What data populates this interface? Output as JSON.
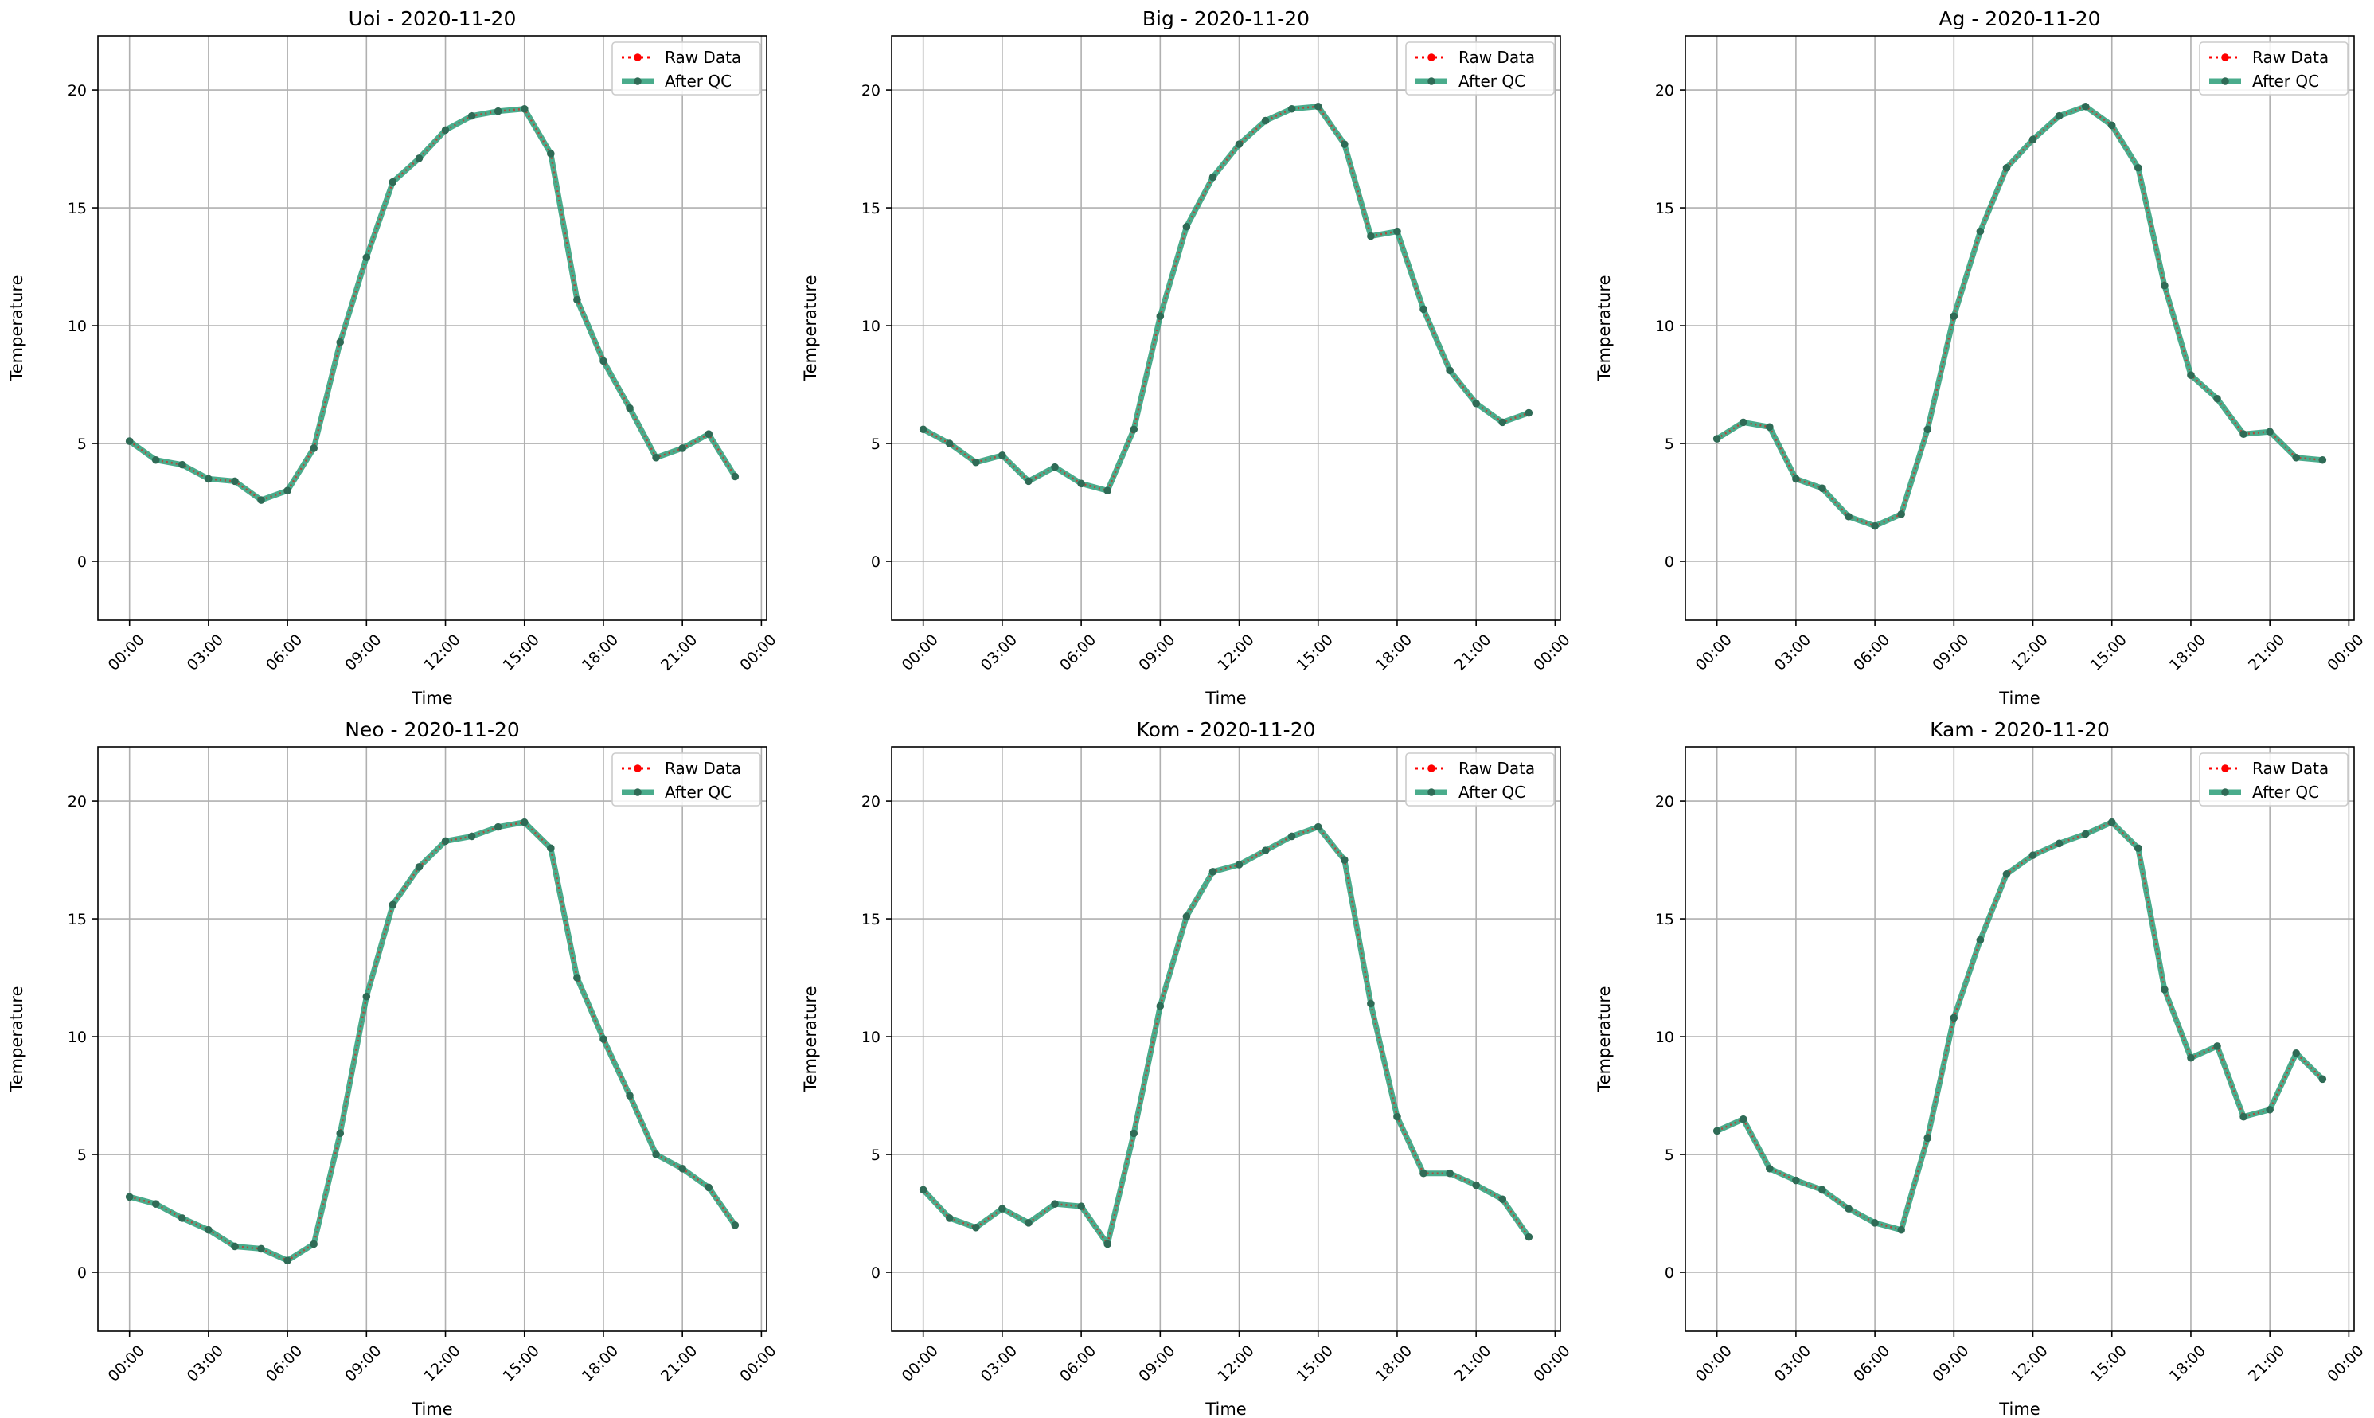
{
  "figure": {
    "background": "#ffffff"
  },
  "style": {
    "raw_color": "#ff0000",
    "qc_color": "#2a9d78",
    "marker_color": "#2f6b56",
    "grid_color": "#b0b0b0",
    "legend_border": "#cccccc"
  },
  "chart_data": [
    {
      "type": "line",
      "title": "Uoi - 2020-11-20",
      "xlabel": "Time",
      "ylabel": "Temperature",
      "x": [
        "00:00",
        "01:00",
        "02:00",
        "03:00",
        "04:00",
        "05:00",
        "06:00",
        "07:00",
        "08:00",
        "09:00",
        "10:00",
        "11:00",
        "12:00",
        "13:00",
        "14:00",
        "15:00",
        "16:00",
        "17:00",
        "18:00",
        "19:00",
        "20:00",
        "21:00",
        "22:00",
        "23:00"
      ],
      "xticks": [
        "00:00",
        "03:00",
        "06:00",
        "09:00",
        "12:00",
        "15:00",
        "18:00",
        "21:00",
        "00:00"
      ],
      "yticks": [
        0,
        5,
        10,
        15,
        20
      ],
      "ylim": [
        -2.5,
        22.3
      ],
      "grid": true,
      "legend_position": "top-right",
      "series": [
        {
          "name": "Raw Data",
          "values": [
            5.1,
            4.3,
            4.1,
            3.5,
            3.4,
            2.6,
            3.0,
            4.8,
            9.3,
            12.9,
            16.1,
            17.1,
            18.3,
            18.9,
            19.1,
            19.2,
            17.3,
            11.1,
            8.5,
            6.5,
            4.4,
            4.8,
            5.4,
            3.6
          ]
        },
        {
          "name": "After QC",
          "values": [
            5.1,
            4.3,
            4.1,
            3.5,
            3.4,
            2.6,
            3.0,
            4.8,
            9.3,
            12.9,
            16.1,
            17.1,
            18.3,
            18.9,
            19.1,
            19.2,
            17.3,
            11.1,
            8.5,
            6.5,
            4.4,
            4.8,
            5.4,
            3.6
          ]
        }
      ]
    },
    {
      "type": "line",
      "title": "Big - 2020-11-20",
      "xlabel": "Time",
      "ylabel": "Temperature",
      "x": [
        "00:00",
        "01:00",
        "02:00",
        "03:00",
        "04:00",
        "05:00",
        "06:00",
        "07:00",
        "08:00",
        "09:00",
        "10:00",
        "11:00",
        "12:00",
        "13:00",
        "14:00",
        "15:00",
        "16:00",
        "17:00",
        "18:00",
        "19:00",
        "20:00",
        "21:00",
        "22:00",
        "23:00"
      ],
      "xticks": [
        "00:00",
        "03:00",
        "06:00",
        "09:00",
        "12:00",
        "15:00",
        "18:00",
        "21:00",
        "00:00"
      ],
      "yticks": [
        0,
        5,
        10,
        15,
        20
      ],
      "ylim": [
        -2.5,
        22.3
      ],
      "grid": true,
      "legend_position": "top-right",
      "series": [
        {
          "name": "Raw Data",
          "values": [
            5.6,
            5.0,
            4.2,
            4.5,
            3.4,
            4.0,
            3.3,
            3.0,
            5.6,
            10.4,
            14.2,
            16.3,
            17.7,
            18.7,
            19.2,
            19.3,
            17.7,
            13.8,
            14.0,
            10.7,
            8.1,
            6.7,
            5.9,
            6.3
          ]
        },
        {
          "name": "After QC",
          "values": [
            5.6,
            5.0,
            4.2,
            4.5,
            3.4,
            4.0,
            3.3,
            3.0,
            5.6,
            10.4,
            14.2,
            16.3,
            17.7,
            18.7,
            19.2,
            19.3,
            17.7,
            13.8,
            14.0,
            10.7,
            8.1,
            6.7,
            5.9,
            6.3
          ]
        }
      ]
    },
    {
      "type": "line",
      "title": "Ag - 2020-11-20",
      "xlabel": "Time",
      "ylabel": "Temperature",
      "x": [
        "00:00",
        "01:00",
        "02:00",
        "03:00",
        "04:00",
        "05:00",
        "06:00",
        "07:00",
        "08:00",
        "09:00",
        "10:00",
        "11:00",
        "12:00",
        "13:00",
        "14:00",
        "15:00",
        "16:00",
        "17:00",
        "18:00",
        "19:00",
        "20:00",
        "21:00",
        "22:00",
        "23:00"
      ],
      "xticks": [
        "00:00",
        "03:00",
        "06:00",
        "09:00",
        "12:00",
        "15:00",
        "18:00",
        "21:00",
        "00:00"
      ],
      "yticks": [
        0,
        5,
        10,
        15,
        20
      ],
      "ylim": [
        -2.5,
        22.3
      ],
      "grid": true,
      "legend_position": "top-right",
      "series": [
        {
          "name": "Raw Data",
          "values": [
            5.2,
            5.9,
            5.7,
            3.5,
            3.1,
            1.9,
            1.5,
            2.0,
            5.6,
            10.4,
            14.0,
            16.7,
            17.9,
            18.9,
            19.3,
            18.5,
            16.7,
            11.7,
            7.9,
            6.9,
            5.4,
            5.5,
            4.4,
            4.3
          ]
        },
        {
          "name": "After QC",
          "values": [
            5.2,
            5.9,
            5.7,
            3.5,
            3.1,
            1.9,
            1.5,
            2.0,
            5.6,
            10.4,
            14.0,
            16.7,
            17.9,
            18.9,
            19.3,
            18.5,
            16.7,
            11.7,
            7.9,
            6.9,
            5.4,
            5.5,
            4.4,
            4.3
          ]
        }
      ]
    },
    {
      "type": "line",
      "title": "Neo - 2020-11-20",
      "xlabel": "Time",
      "ylabel": "Temperature",
      "x": [
        "00:00",
        "01:00",
        "02:00",
        "03:00",
        "04:00",
        "05:00",
        "06:00",
        "07:00",
        "08:00",
        "09:00",
        "10:00",
        "11:00",
        "12:00",
        "13:00",
        "14:00",
        "15:00",
        "16:00",
        "17:00",
        "18:00",
        "19:00",
        "20:00",
        "21:00",
        "22:00",
        "23:00"
      ],
      "xticks": [
        "00:00",
        "03:00",
        "06:00",
        "09:00",
        "12:00",
        "15:00",
        "18:00",
        "21:00",
        "00:00"
      ],
      "yticks": [
        0,
        5,
        10,
        15,
        20
      ],
      "ylim": [
        -2.5,
        22.3
      ],
      "grid": true,
      "legend_position": "top-right",
      "series": [
        {
          "name": "Raw Data",
          "values": [
            3.2,
            2.9,
            2.3,
            1.8,
            1.1,
            1.0,
            0.5,
            1.2,
            5.9,
            11.7,
            15.6,
            17.2,
            18.3,
            18.5,
            18.9,
            19.1,
            18.0,
            12.5,
            9.9,
            7.5,
            5.0,
            4.4,
            3.6,
            2.0
          ]
        },
        {
          "name": "After QC",
          "values": [
            3.2,
            2.9,
            2.3,
            1.8,
            1.1,
            1.0,
            0.5,
            1.2,
            5.9,
            11.7,
            15.6,
            17.2,
            18.3,
            18.5,
            18.9,
            19.1,
            18.0,
            12.5,
            9.9,
            7.5,
            5.0,
            4.4,
            3.6,
            2.0
          ]
        }
      ]
    },
    {
      "type": "line",
      "title": "Kom - 2020-11-20",
      "xlabel": "Time",
      "ylabel": "Temperature",
      "x": [
        "00:00",
        "01:00",
        "02:00",
        "03:00",
        "04:00",
        "05:00",
        "06:00",
        "07:00",
        "08:00",
        "09:00",
        "10:00",
        "11:00",
        "12:00",
        "13:00",
        "14:00",
        "15:00",
        "16:00",
        "17:00",
        "18:00",
        "19:00",
        "20:00",
        "21:00",
        "22:00",
        "23:00"
      ],
      "xticks": [
        "00:00",
        "03:00",
        "06:00",
        "09:00",
        "12:00",
        "15:00",
        "18:00",
        "21:00",
        "00:00"
      ],
      "yticks": [
        0,
        5,
        10,
        15,
        20
      ],
      "ylim": [
        -2.5,
        22.3
      ],
      "grid": true,
      "legend_position": "top-right",
      "series": [
        {
          "name": "Raw Data",
          "values": [
            3.5,
            2.3,
            1.9,
            2.7,
            2.1,
            2.9,
            2.8,
            1.2,
            5.9,
            11.3,
            15.1,
            17.0,
            17.3,
            17.9,
            18.5,
            18.9,
            17.5,
            11.4,
            6.6,
            4.2,
            4.2,
            3.7,
            3.1,
            1.5
          ]
        },
        {
          "name": "After QC",
          "values": [
            3.5,
            2.3,
            1.9,
            2.7,
            2.1,
            2.9,
            2.8,
            1.2,
            5.9,
            11.3,
            15.1,
            17.0,
            17.3,
            17.9,
            18.5,
            18.9,
            17.5,
            11.4,
            6.6,
            4.2,
            4.2,
            3.7,
            3.1,
            1.5
          ]
        }
      ]
    },
    {
      "type": "line",
      "title": "Kam - 2020-11-20",
      "xlabel": "Time",
      "ylabel": "Temperature",
      "x": [
        "00:00",
        "01:00",
        "02:00",
        "03:00",
        "04:00",
        "05:00",
        "06:00",
        "07:00",
        "08:00",
        "09:00",
        "10:00",
        "11:00",
        "12:00",
        "13:00",
        "14:00",
        "15:00",
        "16:00",
        "17:00",
        "18:00",
        "19:00",
        "20:00",
        "21:00",
        "22:00",
        "23:00"
      ],
      "xticks": [
        "00:00",
        "03:00",
        "06:00",
        "09:00",
        "12:00",
        "15:00",
        "18:00",
        "21:00",
        "00:00"
      ],
      "yticks": [
        0,
        5,
        10,
        15,
        20
      ],
      "ylim": [
        -2.5,
        22.3
      ],
      "grid": true,
      "legend_position": "top-right",
      "series": [
        {
          "name": "Raw Data",
          "values": [
            6.0,
            6.5,
            4.4,
            3.9,
            3.5,
            2.7,
            2.1,
            1.8,
            5.7,
            10.8,
            14.1,
            16.9,
            17.7,
            18.2,
            18.6,
            19.1,
            18.0,
            12.0,
            9.1,
            9.6,
            6.6,
            6.9,
            9.3,
            8.2
          ]
        },
        {
          "name": "After QC",
          "values": [
            6.0,
            6.5,
            4.4,
            3.9,
            3.5,
            2.7,
            2.1,
            1.8,
            5.7,
            10.8,
            14.1,
            16.9,
            17.7,
            18.2,
            18.6,
            19.1,
            18.0,
            12.0,
            9.1,
            9.6,
            6.6,
            6.9,
            9.3,
            8.2
          ]
        }
      ]
    }
  ]
}
